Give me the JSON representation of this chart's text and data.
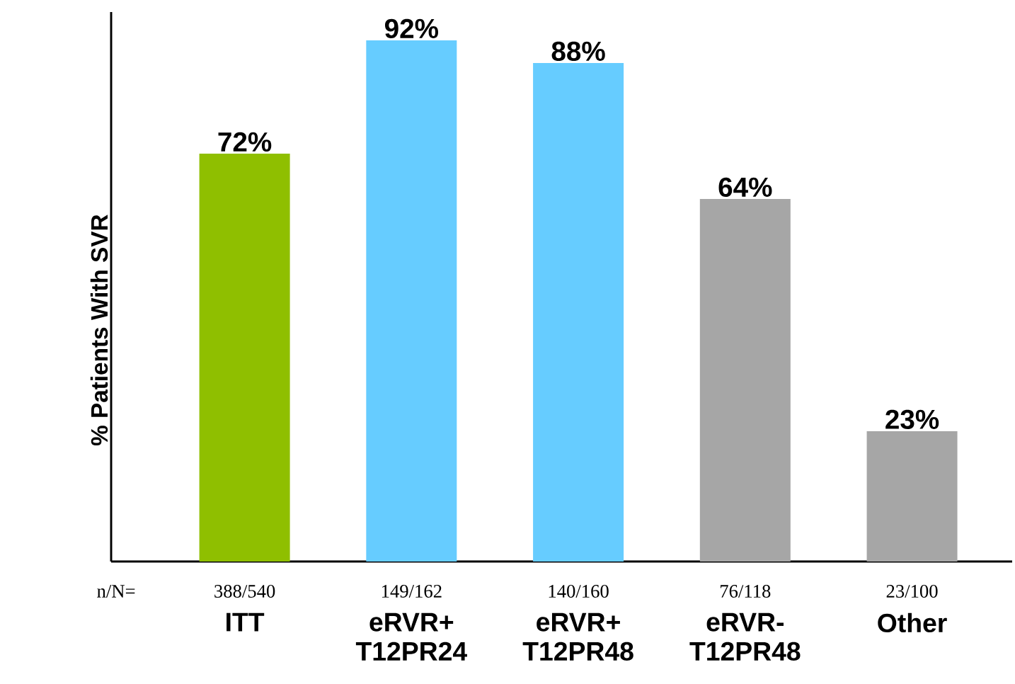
{
  "chart_data": {
    "type": "bar",
    "ylabel": "% Patients With SVR",
    "categories": [
      "ITT",
      "eRVR+ T12PR24",
      "eRVR+ T12PR48",
      "eRVR- T12PR48",
      "Other"
    ],
    "values": [
      72,
      92,
      88,
      64,
      23
    ],
    "value_labels": [
      "72%",
      "92%",
      "88%",
      "64%",
      "23%"
    ],
    "colors": [
      "#8fbf00",
      "#66ccff",
      "#66ccff",
      "#a6a6a6",
      "#a6a6a6"
    ],
    "ylim": [
      0,
      97
    ],
    "tick_labels": "x",
    "annotations": [
      "n/N=",
      "388/540",
      "149/162",
      "140/160",
      "76/118",
      "23/100"
    ]
  }
}
